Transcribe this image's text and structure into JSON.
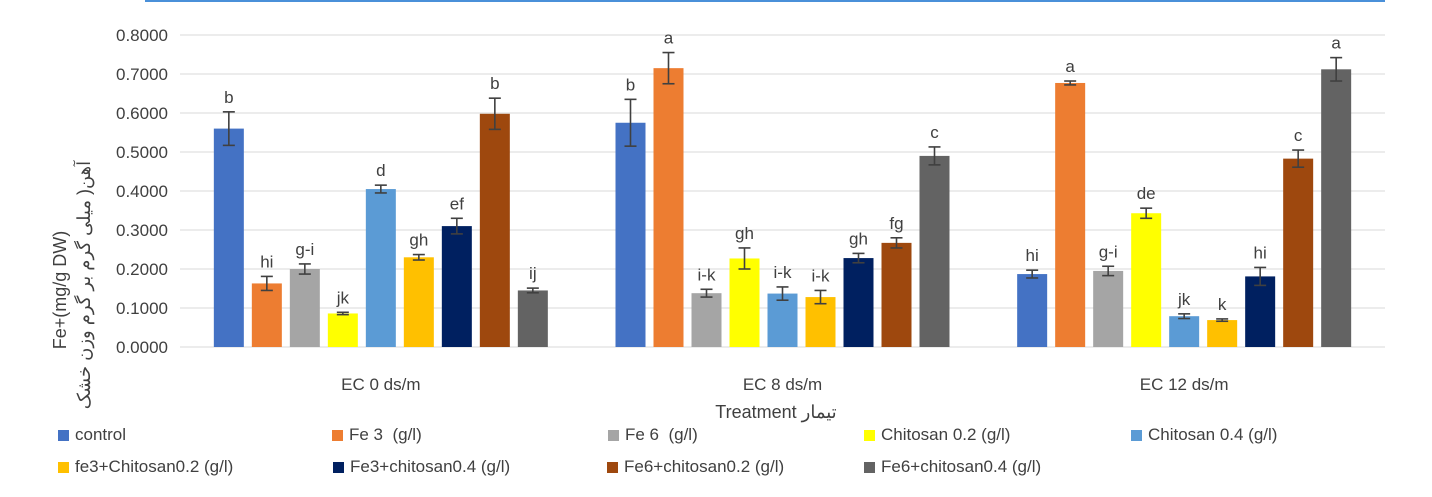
{
  "chart_data": {
    "type": "bar",
    "categories": [
      "EC 0  ds/m",
      "EC 8  ds/m",
      "EC 12  ds/m"
    ],
    "ylabel": "Fe+(mg/g DW)",
    "ylabel_alt": "آهن( میلی گرم بر گرم وزن خشک",
    "xlabel": "Treatment تیمار",
    "ylim": [
      0,
      0.8
    ],
    "yticks": [
      "0.0000",
      "0.1000",
      "0.2000",
      "0.3000",
      "0.4000",
      "0.5000",
      "0.6000",
      "0.7000",
      "0.8000"
    ],
    "grid": true,
    "legend_position": "bottom",
    "series": [
      {
        "name": "control",
        "color": "#4472c4",
        "values": [
          0.56,
          0.575,
          0.187
        ],
        "errors": [
          0.043,
          0.06,
          0.01
        ],
        "labels": [
          "b",
          "b",
          "hi"
        ]
      },
      {
        "name": "Fe 3  (g/l)",
        "color": "#ed7d31",
        "values": [
          0.163,
          0.715,
          0.677
        ],
        "errors": [
          0.018,
          0.04,
          0.005
        ],
        "labels": [
          "hi",
          "a",
          "a"
        ]
      },
      {
        "name": "Fe 6  (g/l)",
        "color": "#a5a5a5",
        "values": [
          0.2,
          0.138,
          0.195
        ],
        "errors": [
          0.013,
          0.01,
          0.012
        ],
        "labels": [
          "g-i",
          "i-k",
          "g-i"
        ]
      },
      {
        "name": "Chitosan 0.2 (g/l)",
        "color": "#ffff00",
        "values": [
          0.086,
          0.227,
          0.343
        ],
        "errors": [
          0.003,
          0.027,
          0.013
        ],
        "labels": [
          "jk",
          "gh",
          "de"
        ]
      },
      {
        "name": "Chitosan 0.4 (g/l)",
        "color": "#5b9bd5",
        "values": [
          0.405,
          0.137,
          0.079
        ],
        "errors": [
          0.01,
          0.017,
          0.006
        ],
        "labels": [
          "d",
          "i-k",
          "jk"
        ]
      },
      {
        "name": "fe3+Chitosan0.2 (g/l)",
        "color": "#ffc000",
        "values": [
          0.23,
          0.128,
          0.069
        ],
        "errors": [
          0.007,
          0.017,
          0.003
        ],
        "labels": [
          "gh",
          "i-k",
          "k"
        ]
      },
      {
        "name": "Fe3+chitosan0.4 (g/l)",
        "color": "#002060",
        "values": [
          0.31,
          0.228,
          0.181
        ],
        "errors": [
          0.02,
          0.012,
          0.023
        ],
        "labels": [
          "ef",
          "gh",
          "hi"
        ]
      },
      {
        "name": "Fe6+chitosan0.2 (g/l)",
        "color": "#9e480e",
        "values": [
          0.598,
          0.267,
          0.483
        ],
        "errors": [
          0.04,
          0.013,
          0.022
        ],
        "labels": [
          "b",
          "fg",
          "c"
        ]
      },
      {
        "name": "Fe6+chitosan0.4 (g/l)",
        "color": "#636363",
        "values": [
          0.145,
          0.49,
          0.712
        ],
        "errors": [
          0.006,
          0.023,
          0.03
        ],
        "labels": [
          "ij",
          "c",
          "a"
        ]
      }
    ]
  }
}
